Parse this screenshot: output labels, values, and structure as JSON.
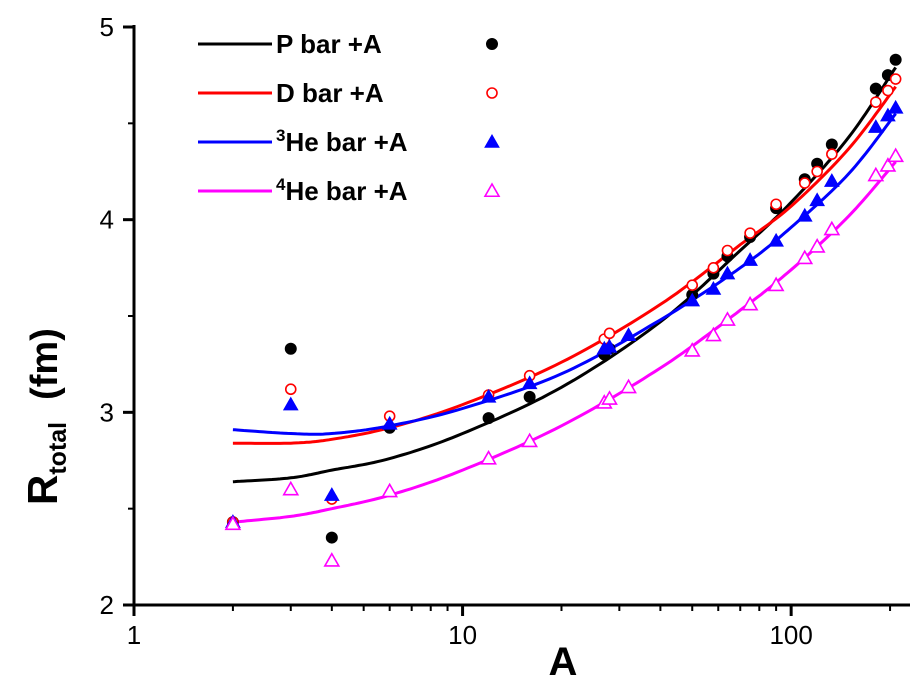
{
  "chart_data": {
    "type": "line",
    "x_scale": "log",
    "xlabel": "A",
    "ylabel_main": "R",
    "ylabel_sub": "total",
    "ylabel_unit": "(fm)",
    "xlim": [
      1,
      230
    ],
    "ylim": [
      2,
      5
    ],
    "x_ticks": [
      1,
      10,
      100
    ],
    "x_tick_labels": [
      "1",
      "10",
      "100"
    ],
    "y_ticks": [
      2,
      3,
      4,
      5
    ],
    "y_tick_labels": [
      "2",
      "3",
      "4",
      "5"
    ],
    "legend_placement": "top-left",
    "series": [
      {
        "name": "P bar    +A",
        "color": "#000000",
        "marker": "filled-circle",
        "curve": [
          [
            2,
            2.64
          ],
          [
            3,
            2.66
          ],
          [
            4,
            2.7
          ],
          [
            6,
            2.76
          ],
          [
            10,
            2.89
          ],
          [
            20,
            3.13
          ],
          [
            40,
            3.47
          ],
          [
            70,
            3.84
          ],
          [
            100,
            4.09
          ],
          [
            150,
            4.43
          ],
          [
            208,
            4.79
          ]
        ],
        "points": [
          [
            2,
            2.43
          ],
          [
            3,
            3.33
          ],
          [
            4,
            2.35
          ],
          [
            6,
            2.92
          ],
          [
            12,
            2.97
          ],
          [
            16,
            3.08
          ],
          [
            27,
            3.3
          ],
          [
            28,
            3.33
          ],
          [
            50,
            3.61
          ],
          [
            58,
            3.72
          ],
          [
            64,
            3.81
          ],
          [
            75,
            3.91
          ],
          [
            90,
            4.06
          ],
          [
            110,
            4.21
          ],
          [
            120,
            4.29
          ],
          [
            133,
            4.39
          ],
          [
            181,
            4.68
          ],
          [
            197,
            4.75
          ],
          [
            208,
            4.83
          ]
        ]
      },
      {
        "name": "D bar    +A",
        "color": "#ff0000",
        "marker": "open-circle",
        "curve": [
          [
            2,
            2.84
          ],
          [
            3,
            2.84
          ],
          [
            4,
            2.86
          ],
          [
            6,
            2.92
          ],
          [
            10,
            3.04
          ],
          [
            20,
            3.26
          ],
          [
            40,
            3.56
          ],
          [
            70,
            3.87
          ],
          [
            100,
            4.07
          ],
          [
            150,
            4.37
          ],
          [
            208,
            4.69
          ]
        ],
        "points": [
          [
            2,
            2.43
          ],
          [
            3,
            3.12
          ],
          [
            4,
            2.55
          ],
          [
            6,
            2.98
          ],
          [
            12,
            3.09
          ],
          [
            16,
            3.19
          ],
          [
            27,
            3.38
          ],
          [
            28,
            3.41
          ],
          [
            50,
            3.66
          ],
          [
            58,
            3.75
          ],
          [
            64,
            3.84
          ],
          [
            75,
            3.93
          ],
          [
            90,
            4.08
          ],
          [
            110,
            4.19
          ],
          [
            120,
            4.25
          ],
          [
            133,
            4.34
          ],
          [
            181,
            4.61
          ],
          [
            197,
            4.67
          ],
          [
            208,
            4.73
          ]
        ]
      },
      {
        "name": "He bar +A",
        "name_prefix_sup": "3",
        "color": "#0000ff",
        "marker": "filled-triangle",
        "curve": [
          [
            2,
            2.91
          ],
          [
            3,
            2.89
          ],
          [
            4,
            2.89
          ],
          [
            6,
            2.93
          ],
          [
            10,
            3.02
          ],
          [
            20,
            3.2
          ],
          [
            40,
            3.48
          ],
          [
            70,
            3.75
          ],
          [
            100,
            3.96
          ],
          [
            150,
            4.24
          ],
          [
            208,
            4.55
          ]
        ],
        "points": [
          [
            2,
            2.43
          ],
          [
            3,
            3.04
          ],
          [
            4,
            2.57
          ],
          [
            6,
            2.94
          ],
          [
            12,
            3.08
          ],
          [
            16,
            3.15
          ],
          [
            27,
            3.33
          ],
          [
            28,
            3.34
          ],
          [
            32,
            3.4
          ],
          [
            50,
            3.58
          ],
          [
            58,
            3.64
          ],
          [
            64,
            3.72
          ],
          [
            75,
            3.79
          ],
          [
            90,
            3.89
          ],
          [
            110,
            4.02
          ],
          [
            120,
            4.1
          ],
          [
            133,
            4.2
          ],
          [
            181,
            4.48
          ],
          [
            197,
            4.54
          ],
          [
            208,
            4.58
          ]
        ]
      },
      {
        "name": "He bar +A",
        "name_prefix_sup": "4",
        "color": "#ff00ff",
        "marker": "open-triangle",
        "curve": [
          [
            2,
            2.43
          ],
          [
            3,
            2.46
          ],
          [
            4,
            2.5
          ],
          [
            6,
            2.57
          ],
          [
            10,
            2.7
          ],
          [
            20,
            2.93
          ],
          [
            40,
            3.23
          ],
          [
            70,
            3.53
          ],
          [
            100,
            3.74
          ],
          [
            150,
            4.02
          ],
          [
            208,
            4.3
          ]
        ],
        "points": [
          [
            2,
            2.42
          ],
          [
            3,
            2.6
          ],
          [
            4,
            2.23
          ],
          [
            6,
            2.59
          ],
          [
            12,
            2.76
          ],
          [
            16,
            2.85
          ],
          [
            27,
            3.05
          ],
          [
            28,
            3.07
          ],
          [
            32,
            3.13
          ],
          [
            50,
            3.32
          ],
          [
            58,
            3.4
          ],
          [
            64,
            3.48
          ],
          [
            75,
            3.56
          ],
          [
            90,
            3.66
          ],
          [
            110,
            3.8
          ],
          [
            120,
            3.86
          ],
          [
            133,
            3.95
          ],
          [
            181,
            4.23
          ],
          [
            197,
            4.28
          ],
          [
            208,
            4.33
          ]
        ]
      }
    ]
  }
}
